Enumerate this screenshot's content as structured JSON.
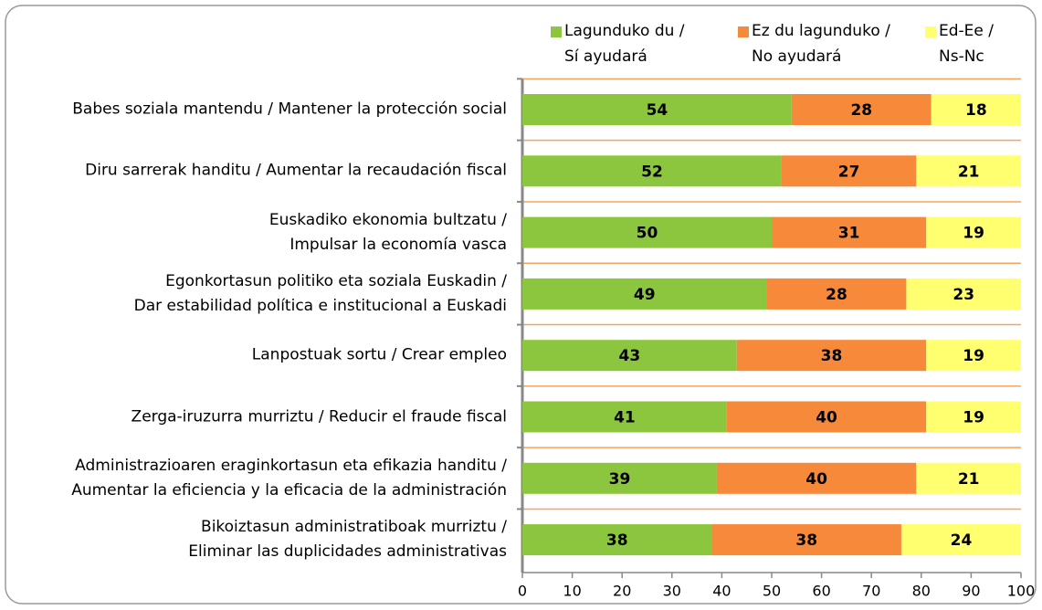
{
  "chart_data": {
    "type": "stacked-bar-horizontal",
    "categories": [
      "Babes soziala mantendu / Mantener la protección social",
      "Diru sarrerak handitu / Aumentar la recaudación fiscal",
      "Euskadiko ekonomia bultzatu /\nImpulsar la economía vasca",
      "Egonkortasun politiko eta soziala Euskadin /\nDar estabilidad política e institucional a Euskadi",
      "Lanpostuak sortu / Crear empleo",
      "Zerga-iruzurra murriztu / Reducir el fraude fiscal",
      "Administrazioaren eraginkortasun eta efikazia handitu /\nAumentar la eficiencia y la eficacia de la administración",
      "Bikoiztasun administratiboak murriztu /\nEliminar las duplicidades administrativas"
    ],
    "series": [
      {
        "name": "Lagunduko du /\nSí ayudará",
        "color": "#8cc63e",
        "values": [
          54,
          52,
          50,
          49,
          43,
          41,
          39,
          38
        ]
      },
      {
        "name": "Ez du lagunduko /\nNo ayudará",
        "color": "#f7893b",
        "values": [
          28,
          27,
          31,
          28,
          38,
          40,
          40,
          38
        ]
      },
      {
        "name": "Ed-Ee /\nNs-Nc",
        "color": "#ffff70",
        "values": [
          18,
          21,
          19,
          23,
          19,
          19,
          21,
          24
        ]
      }
    ],
    "xlim": [
      0,
      100
    ],
    "xticks": [
      0,
      10,
      20,
      30,
      40,
      50,
      60,
      70,
      80,
      90,
      100
    ],
    "grid": false
  }
}
